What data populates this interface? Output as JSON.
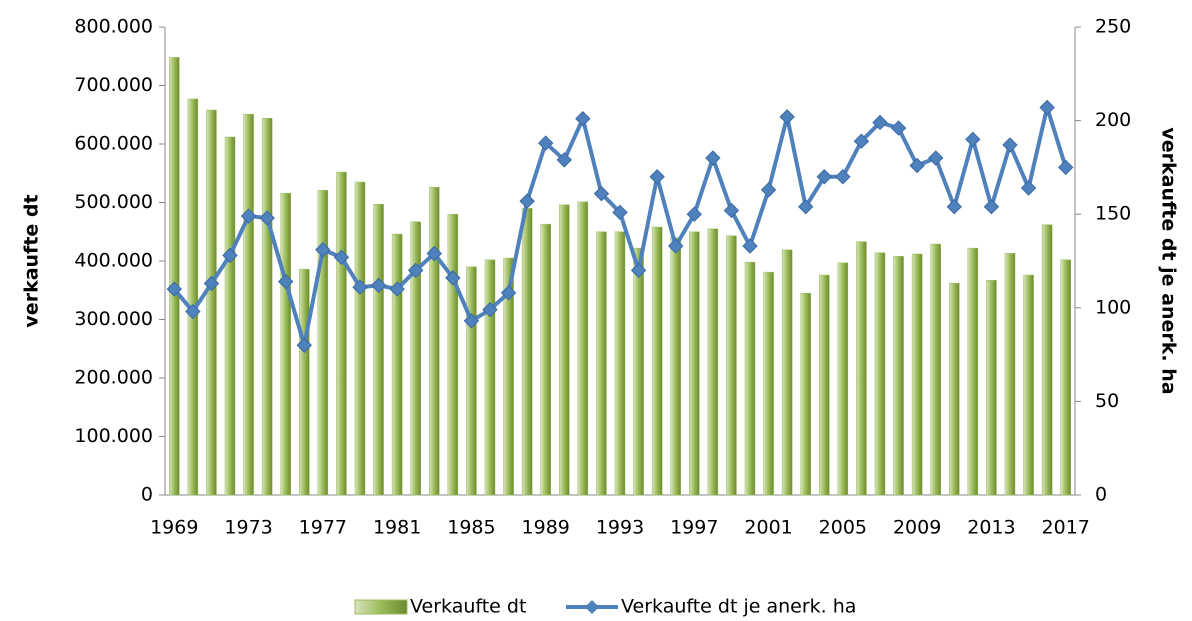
{
  "chart_data": {
    "type": "bar_line",
    "categories": [
      "1969",
      null,
      null,
      null,
      "1973",
      null,
      null,
      null,
      "1977",
      null,
      null,
      null,
      "1981",
      null,
      null,
      null,
      "1985",
      null,
      null,
      null,
      "1989",
      null,
      null,
      null,
      "1993",
      null,
      null,
      null,
      "1997",
      null,
      null,
      null,
      "2001",
      null,
      null,
      null,
      "2005",
      null,
      null,
      null,
      "2009",
      null,
      null,
      null,
      "2013",
      null,
      null,
      null,
      "2017"
    ],
    "y_label": "verkaufte dt",
    "y2_label": "verkaufte dt je anerk. ha",
    "series": [
      {
        "name": "Verkaufte dt",
        "type": "bar",
        "color": "#9bbb59",
        "values": [
          748000,
          677000,
          658000,
          612000,
          651000,
          644000,
          516000,
          386000,
          521000,
          552000,
          535000,
          497000,
          446000,
          467000,
          526000,
          480000,
          390000,
          402000,
          405000,
          490000,
          463000,
          496000,
          501000,
          450000,
          450000,
          422000,
          458000,
          440000,
          450000,
          455000,
          443000,
          398000,
          381000,
          419000,
          345000,
          376000,
          397000,
          433000,
          414000,
          408000,
          412000,
          429000,
          362000,
          422000,
          367000,
          413000,
          376000,
          462000,
          402000
        ]
      },
      {
        "name": "Verkaufte dt je anerk. ha",
        "type": "line",
        "axis": "y2",
        "color": "#4f81bd",
        "values": [
          110,
          98,
          113,
          128,
          149,
          148,
          114,
          80,
          131,
          127,
          111,
          112,
          110,
          120,
          129,
          116,
          93,
          99,
          108,
          157,
          188,
          179,
          201,
          161,
          151,
          120,
          170,
          133,
          150,
          180,
          152,
          133,
          163,
          202,
          154,
          170,
          170,
          189,
          199,
          196,
          176,
          180,
          154,
          190,
          154,
          187,
          164,
          207,
          175
        ]
      }
    ],
    "ylim": [
      0,
      800000
    ],
    "yticks": [
      0,
      {
        "value": 100000,
        "label": "100.000"
      },
      {
        "value": 200000,
        "label": "200.000"
      },
      {
        "value": 300000,
        "label": "300.000"
      },
      {
        "value": 400000,
        "label": "400.000"
      },
      {
        "value": 500000,
        "label": "500.000"
      },
      {
        "value": 600000,
        "label": "600.000"
      },
      {
        "value": 700000,
        "label": "700.000"
      },
      {
        "value": 800000,
        "label": "800.000"
      }
    ],
    "y2lim": [
      0,
      250
    ],
    "y2ticks": [
      0,
      50,
      100,
      150,
      200,
      250
    ],
    "legend": "bottom"
  }
}
